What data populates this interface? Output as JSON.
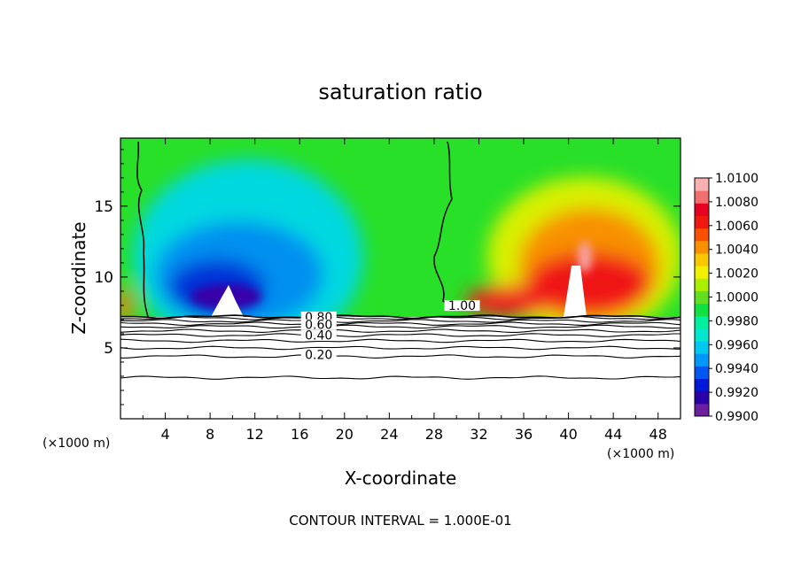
{
  "chart_data": {
    "type": "heatmap",
    "title": "saturation ratio",
    "xlabel": "X-coordinate",
    "ylabel": "Z-coordinate",
    "x_unit_left": "(×1000 m)",
    "x_unit_right": "(×1000 m)",
    "footer": "CONTOUR INTERVAL = 1.000E-01",
    "xlim": [
      0,
      50
    ],
    "ylim": [
      0,
      19.8
    ],
    "x_ticks": [
      "4",
      "8",
      "12",
      "16",
      "20",
      "24",
      "28",
      "32",
      "36",
      "40",
      "44",
      "48"
    ],
    "y_ticks": [
      "5",
      "10",
      "15"
    ],
    "colorbar": {
      "range": [
        0.99,
        1.01
      ],
      "labels": [
        "1.0100",
        "1.0080",
        "1.0060",
        "1.0040",
        "1.0020",
        "1.0000",
        "0.9980",
        "0.9960",
        "0.9940",
        "0.9920",
        "0.9900"
      ],
      "colors": [
        "#6a1ea0",
        "#2a00a8",
        "#0018d8",
        "#0058f0",
        "#0098f8",
        "#00c8f0",
        "#00e8d0",
        "#00f0a0",
        "#10e040",
        "#60e020",
        "#a8f000",
        "#f0f000",
        "#f8c800",
        "#f89000",
        "#f85000",
        "#f01810",
        "#e80020",
        "#f07070",
        "#f8b0b0"
      ]
    },
    "contour_labels": [
      {
        "text": "1.00",
        "x": 30.5,
        "z": 7.8
      },
      {
        "text": "0.80",
        "x": 17.7,
        "z": 7.0
      },
      {
        "text": "0.60",
        "x": 17.7,
        "z": 6.45
      },
      {
        "text": "0.40",
        "x": 17.7,
        "z": 5.7
      },
      {
        "text": "0.20",
        "x": 17.7,
        "z": 4.35
      }
    ],
    "contours_below": [
      7.1,
      6.9,
      6.7,
      6.5,
      6.2,
      5.9,
      5.5,
      5.0,
      4.4,
      2.9
    ],
    "boundary_z": 7.2
  }
}
